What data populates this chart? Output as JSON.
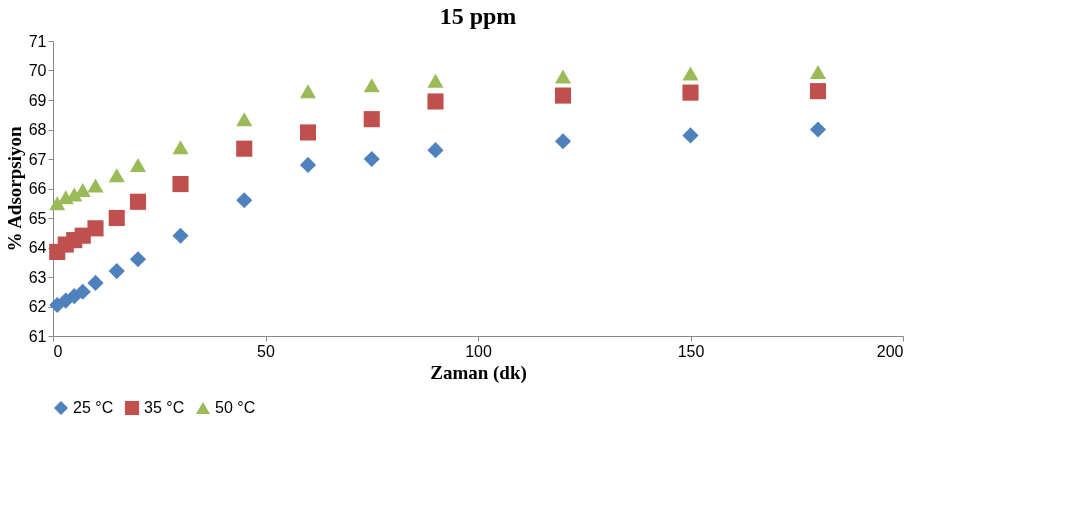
{
  "chart_data": {
    "type": "scatter",
    "title": "15 ppm",
    "xlabel": "Zaman (dk)",
    "ylabel": "% Adsorpsiyon",
    "x": [
      1,
      3,
      5,
      7,
      10,
      15,
      20,
      30,
      45,
      60,
      75,
      90,
      120,
      150,
      180
    ],
    "series": [
      {
        "name": "25 °C",
        "color": "#4f81bd",
        "marker": "diamond",
        "values": [
          62.05,
          62.2,
          62.35,
          62.5,
          62.8,
          63.2,
          63.6,
          64.4,
          65.6,
          66.8,
          67.0,
          67.3,
          67.6,
          67.8,
          68.0
        ]
      },
      {
        "name": "35 °C",
        "color": "#c0504d",
        "marker": "square",
        "values": [
          63.85,
          64.1,
          64.25,
          64.4,
          64.65,
          65.0,
          65.55,
          66.15,
          67.35,
          67.9,
          68.35,
          68.95,
          69.15,
          69.25,
          69.3
        ]
      },
      {
        "name": "50 °C",
        "color": "#9bbb59",
        "marker": "triangle",
        "values": [
          65.5,
          65.7,
          65.8,
          65.95,
          66.1,
          66.45,
          66.8,
          67.4,
          68.35,
          69.3,
          69.5,
          69.65,
          69.8,
          69.9,
          69.95
        ]
      }
    ],
    "xlim": [
      0,
      200
    ],
    "xticks": [
      0,
      50,
      100,
      150,
      200
    ],
    "ylim": [
      61,
      71
    ],
    "yticks": [
      61,
      62,
      63,
      64,
      65,
      66,
      67,
      68,
      69,
      70,
      71
    ],
    "grid": false,
    "legend": "bottom"
  }
}
